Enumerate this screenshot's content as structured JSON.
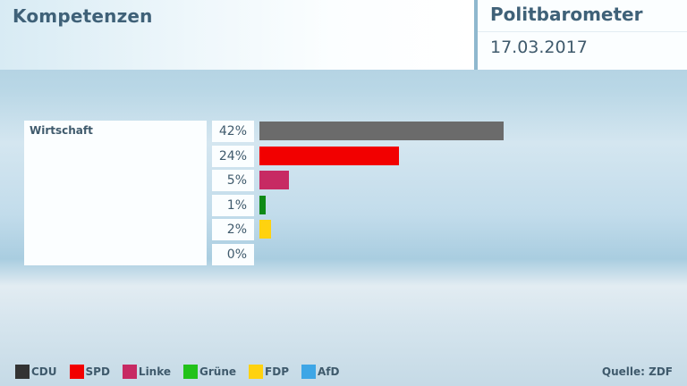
{
  "header": {
    "title": "Kompetenzen",
    "brand": "Politbarometer",
    "date": "17.03.2017"
  },
  "category": "Wirtschaft",
  "rows": [
    {
      "party": "CDU",
      "label": "42%",
      "value": 42,
      "color": "#6b6b6b"
    },
    {
      "party": "SPD",
      "label": "24%",
      "value": 24,
      "color": "#f20000"
    },
    {
      "party": "Linke",
      "label": "5%",
      "value": 5,
      "color": "#c72a63"
    },
    {
      "party": "Grüne",
      "label": "1%",
      "value": 1,
      "color": "#0f8a16"
    },
    {
      "party": "FDP",
      "label": "2%",
      "value": 2,
      "color": "#ffd20f"
    },
    {
      "party": "AfD",
      "label": "0%",
      "value": 0,
      "color": "#3ea6e6"
    }
  ],
  "legend": [
    {
      "label": "CDU",
      "color": "#333333"
    },
    {
      "label": "SPD",
      "color": "#f20000"
    },
    {
      "label": "Linke",
      "color": "#c72a63"
    },
    {
      "label": "Grüne",
      "color": "#22c21a"
    },
    {
      "label": "FDP",
      "color": "#ffd20f"
    },
    {
      "label": "AfD",
      "color": "#3ea6e6"
    }
  ],
  "source": "Quelle: ZDF",
  "chart_data": {
    "type": "bar",
    "orientation": "horizontal",
    "title": "Kompetenzen",
    "subtitle": "Politbarometer 17.03.2017",
    "category": "Wirtschaft",
    "categories": [
      "CDU",
      "SPD",
      "Linke",
      "Grüne",
      "FDP",
      "AfD"
    ],
    "values": [
      42,
      24,
      5,
      1,
      2,
      0
    ],
    "unit": "%",
    "colors": [
      "#6b6b6b",
      "#f20000",
      "#c72a63",
      "#0f8a16",
      "#ffd20f",
      "#3ea6e6"
    ],
    "legend": [
      "CDU",
      "SPD",
      "Linke",
      "Grüne",
      "FDP",
      "AfD"
    ],
    "legend_position": "bottom",
    "grid": false,
    "source": "Quelle: ZDF"
  }
}
